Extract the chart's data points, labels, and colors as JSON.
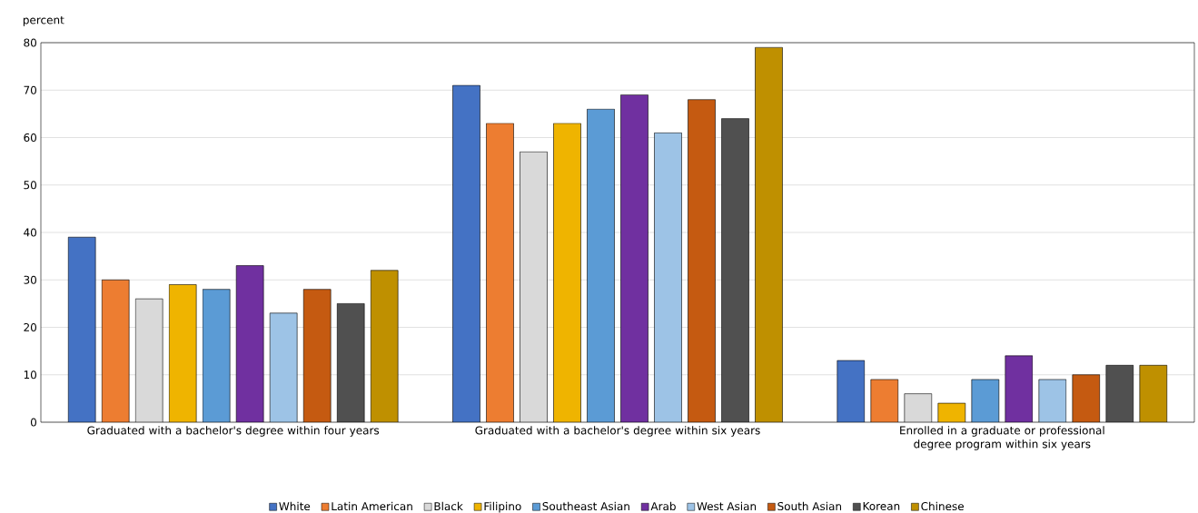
{
  "chart_data": {
    "type": "bar",
    "ylabel": "percent",
    "categories": [
      "Graduated with a bachelor's degree within four years",
      "Graduated with a bachelor's degree within six years",
      "Enrolled in a graduate or professional degree program within six years"
    ],
    "series": [
      {
        "name": "White",
        "color": "#4472c4",
        "values": [
          39,
          71,
          13
        ]
      },
      {
        "name": "Latin American",
        "color": "#ed7d31",
        "values": [
          30,
          63,
          9
        ]
      },
      {
        "name": "Black",
        "color": "#d9d9d9",
        "values": [
          26,
          57,
          6
        ]
      },
      {
        "name": "Filipino",
        "color": "#efb400",
        "values": [
          29,
          63,
          4
        ]
      },
      {
        "name": "Southeast Asian",
        "color": "#5b9bd5",
        "values": [
          28,
          66,
          9
        ]
      },
      {
        "name": "Arab",
        "color": "#7030a0",
        "values": [
          33,
          69,
          14
        ]
      },
      {
        "name": "West Asian",
        "color": "#9dc3e6",
        "values": [
          23,
          61,
          9
        ]
      },
      {
        "name": "South Asian",
        "color": "#c55a11",
        "values": [
          28,
          68,
          10
        ]
      },
      {
        "name": "Korean",
        "color": "#505050",
        "values": [
          25,
          64,
          12
        ]
      },
      {
        "name": "Chinese",
        "color": "#bf9000",
        "values": [
          32,
          79,
          12
        ]
      }
    ],
    "ylim": [
      0,
      80
    ],
    "yticks": [
      0,
      10,
      20,
      30,
      40,
      50,
      60,
      70,
      80
    ],
    "grid": "y",
    "legend": "bottom"
  }
}
